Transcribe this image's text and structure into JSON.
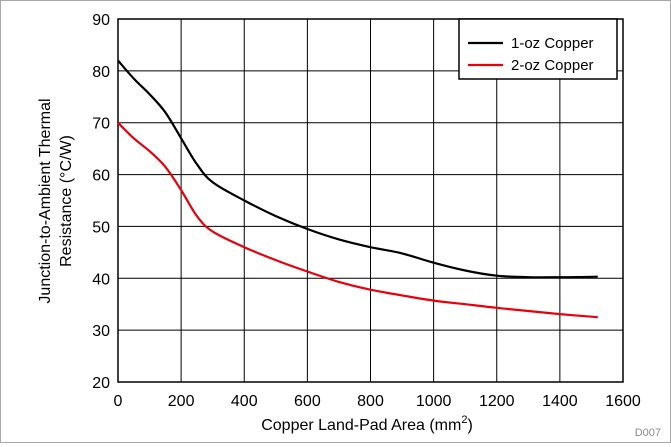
{
  "chart_data": {
    "type": "line",
    "title": "",
    "xlabel": "Copper Land-Pad Area (mm",
    "xlabel_sup": "2",
    "xlabel_suffix": ")",
    "ylabel_line1": "Junction-to-Ambient Thermal",
    "ylabel_line2": "Resistance (°C/W)",
    "xlim": [
      0,
      1600
    ],
    "ylim": [
      20,
      90
    ],
    "xticks": [
      0,
      200,
      400,
      600,
      800,
      1000,
      1200,
      1400,
      1600
    ],
    "yticks": [
      20,
      30,
      40,
      50,
      60,
      70,
      80,
      90
    ],
    "grid": true,
    "legend_position": "top-right",
    "figure_code": "D007",
    "series": [
      {
        "name": "1-oz Copper",
        "color": "#000000",
        "x": [
          0,
          50,
          100,
          150,
          200,
          250,
          300,
          400,
          500,
          600,
          700,
          800,
          900,
          1000,
          1100,
          1200,
          1300,
          1400,
          1520
        ],
        "y": [
          82,
          78.5,
          75.5,
          72,
          67,
          62,
          58.5,
          55,
          52,
          49.5,
          47.5,
          46,
          44.8,
          43,
          41.5,
          40.5,
          40.2,
          40.2,
          40.3
        ]
      },
      {
        "name": "2-oz Copper",
        "color": "#e8000b",
        "x": [
          0,
          50,
          100,
          150,
          200,
          250,
          300,
          400,
          500,
          600,
          700,
          800,
          900,
          1000,
          1100,
          1200,
          1300,
          1400,
          1520
        ],
        "y": [
          70,
          67,
          64.5,
          61.5,
          57,
          52,
          49,
          46,
          43.5,
          41.3,
          39.3,
          37.8,
          36.7,
          35.7,
          35,
          34.3,
          33.7,
          33.1,
          32.5
        ]
      }
    ]
  }
}
